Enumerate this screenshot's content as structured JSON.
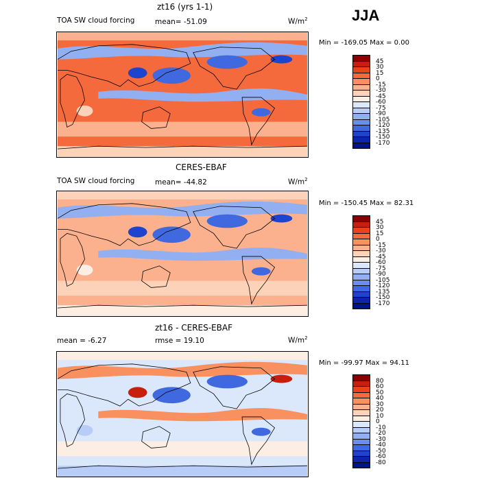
{
  "season": "JJA",
  "panels": [
    {
      "title": "zt16 (yrs 1-1)",
      "left_label": "TOA SW cloud forcing",
      "stat": "mean= -51.09",
      "units": "W/m",
      "units_sup": "2",
      "minmax": "Min = -169.05 Max =    0.00",
      "colorbar": {
        "labels": [
          "45",
          "30",
          "15",
          "0",
          "-15",
          "-30",
          "-45",
          "-60",
          "-75",
          "-90",
          "-105",
          "-120",
          "-135",
          "-150",
          "-170"
        ],
        "colors": [
          "#8b0000",
          "#c81e0e",
          "#e8431e",
          "#f46a3c",
          "#f8905f",
          "#fbb18e",
          "#fcd3b8",
          "#fdeee4",
          "#dbe8fb",
          "#b7cdf7",
          "#92b0f1",
          "#6a8ee9",
          "#4069df",
          "#1d44cf",
          "#0a25b0",
          "#001383"
        ]
      },
      "map_palette": {
        "base": "#f46a3c",
        "light": "#fbb18e",
        "pale": "#fcd3b8",
        "cool": "#92b0f1",
        "cold": "#4069df",
        "deep": "#1d44cf"
      }
    },
    {
      "title": "CERES-EBAF",
      "left_label": "TOA SW cloud forcing",
      "stat": "mean= -44.82",
      "units": "W/m",
      "units_sup": "2",
      "minmax": "Min = -150.45 Max =  82.31",
      "colorbar": {
        "labels": [
          "45",
          "30",
          "15",
          "0",
          "-15",
          "-30",
          "-45",
          "-60",
          "-75",
          "-90",
          "-105",
          "-120",
          "-135",
          "-150",
          "-170"
        ],
        "colors": [
          "#8b0000",
          "#c81e0e",
          "#e8431e",
          "#f46a3c",
          "#f8905f",
          "#fbb18e",
          "#fcd3b8",
          "#fdeee4",
          "#dbe8fb",
          "#b7cdf7",
          "#92b0f1",
          "#6a8ee9",
          "#4069df",
          "#1d44cf",
          "#0a25b0",
          "#001383"
        ]
      },
      "map_palette": {
        "base": "#fbb18e",
        "light": "#fcd3b8",
        "pale": "#fdeee4",
        "cool": "#92b0f1",
        "cold": "#4069df",
        "deep": "#1d44cf"
      }
    },
    {
      "title": "zt16 - CERES-EBAF",
      "left_label": "mean =   -6.27",
      "stat": "rmse =   19.10",
      "units": "W/m",
      "units_sup": "2",
      "minmax": "Min = -99.97 Max =  94.11",
      "colorbar": {
        "labels": [
          "80",
          "60",
          "50",
          "40",
          "30",
          "20",
          "10",
          "0",
          "-10",
          "-20",
          "-30",
          "-40",
          "-50",
          "-60",
          "-80"
        ],
        "colors": [
          "#8b0000",
          "#c81e0e",
          "#e8431e",
          "#f46a3c",
          "#f8905f",
          "#fbb18e",
          "#fcd3b8",
          "#fdeee4",
          "#dbe8fb",
          "#b7cdf7",
          "#92b0f1",
          "#6a8ee9",
          "#4069df",
          "#1d44cf",
          "#0a25b0",
          "#001383"
        ]
      },
      "map_palette": {
        "base": "#dbe8fb",
        "light": "#fdeee4",
        "pale": "#b7cdf7",
        "cool": "#f8905f",
        "cold": "#4069df",
        "deep": "#c81e0e"
      }
    }
  ],
  "chart_data": [
    {
      "type": "heatmap",
      "title": "zt16 (yrs 1-1)",
      "variable": "TOA SW cloud forcing",
      "units": "W/m2",
      "season": "JJA",
      "mean": -51.09,
      "min": -169.05,
      "max": 0.0,
      "levels": [
        45,
        30,
        15,
        0,
        -15,
        -30,
        -45,
        -60,
        -75,
        -90,
        -105,
        -120,
        -135,
        -150,
        -170
      ]
    },
    {
      "type": "heatmap",
      "title": "CERES-EBAF",
      "variable": "TOA SW cloud forcing",
      "units": "W/m2",
      "season": "JJA",
      "mean": -44.82,
      "min": -150.45,
      "max": 82.31,
      "levels": [
        45,
        30,
        15,
        0,
        -15,
        -30,
        -45,
        -60,
        -75,
        -90,
        -105,
        -120,
        -135,
        -150,
        -170
      ]
    },
    {
      "type": "heatmap",
      "title": "zt16 - CERES-EBAF",
      "units": "W/m2",
      "season": "JJA",
      "mean": -6.27,
      "rmse": 19.1,
      "min": -99.97,
      "max": 94.11,
      "levels": [
        80,
        60,
        50,
        40,
        30,
        20,
        10,
        0,
        -10,
        -20,
        -30,
        -40,
        -50,
        -60,
        -80
      ]
    }
  ]
}
